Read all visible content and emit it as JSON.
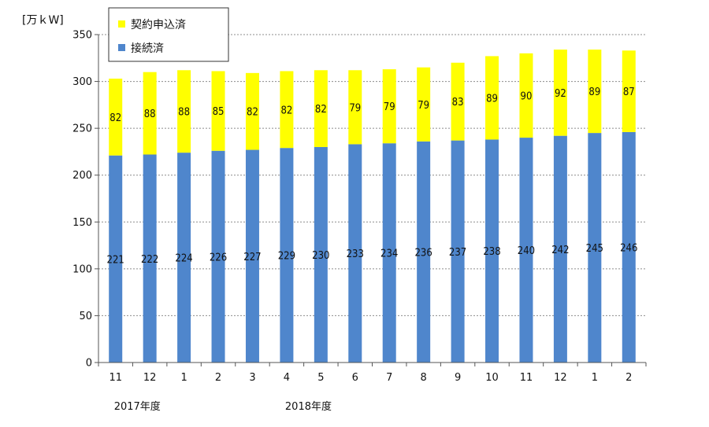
{
  "chart_data": {
    "type": "bar",
    "stacked": true,
    "ylabel": "[万ｋW]",
    "ylim": [
      0,
      350
    ],
    "yticks": [
      0,
      50,
      100,
      150,
      200,
      250,
      300,
      350
    ],
    "grid": true,
    "legend_position": "top-left",
    "categories": [
      "11",
      "12",
      "1",
      "2",
      "3",
      "4",
      "5",
      "6",
      "7",
      "8",
      "9",
      "10",
      "11",
      "12",
      "1",
      "2"
    ],
    "year_labels": [
      {
        "label": "2017年度",
        "start_index": 0
      },
      {
        "label": "2018年度",
        "start_index": 5
      }
    ],
    "series": [
      {
        "name": "接続済",
        "color": "#4f86cc",
        "values": [
          221,
          222,
          224,
          226,
          227,
          229,
          230,
          233,
          234,
          236,
          237,
          238,
          240,
          242,
          245,
          246
        ]
      },
      {
        "name": "契約申込済",
        "color": "#ffff00",
        "values": [
          82,
          88,
          88,
          85,
          82,
          82,
          82,
          79,
          79,
          79,
          83,
          89,
          90,
          92,
          89,
          87
        ]
      }
    ]
  }
}
